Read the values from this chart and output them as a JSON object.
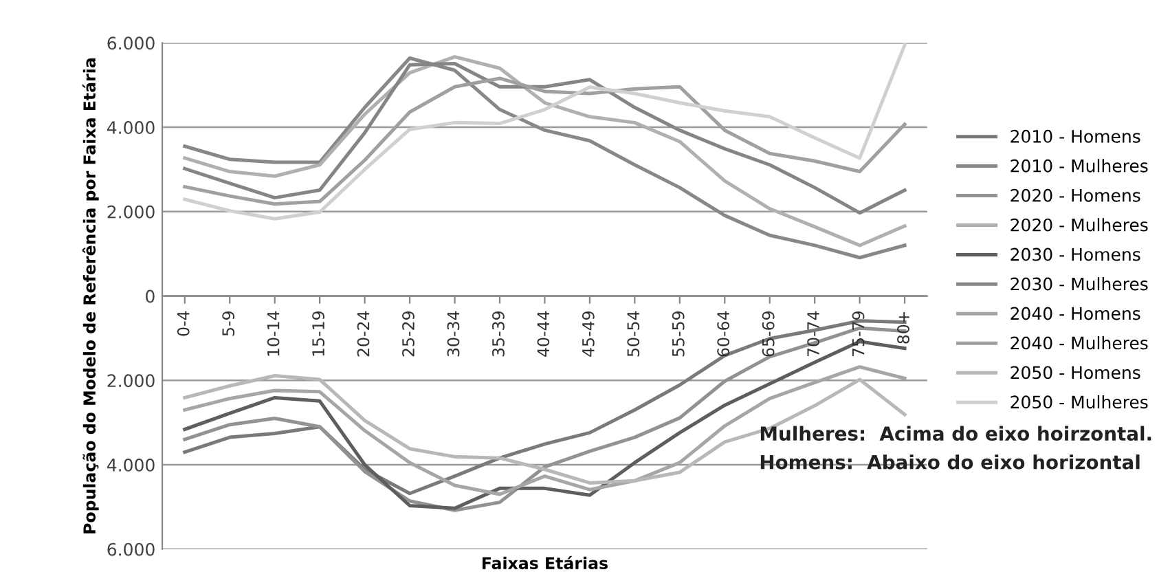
{
  "chart_data": {
    "type": "line",
    "xlabel": "Faixas Etárias",
    "ylabel": "População do Modelo de Referência por Faixa Etária",
    "categories": [
      "0-4",
      "5-9",
      "10-14",
      "15-19",
      "20-24",
      "25-29",
      "30-34",
      "35-39",
      "40-44",
      "45-49",
      "50-54",
      "55-59",
      "60-64",
      "65-69",
      "70-74",
      "75-79",
      "80+"
    ],
    "series": [
      {
        "name": "2010 - Homens",
        "color": "#7a7a7a",
        "values": [
          -3700,
          -3350,
          -3260,
          -3100,
          -4110,
          -4680,
          -4270,
          -3840,
          -3510,
          -3240,
          -2700,
          -2110,
          -1410,
          -1010,
          -810,
          -590,
          -620
        ]
      },
      {
        "name": "2010 - Mulheres",
        "color": "#888888",
        "values": [
          3550,
          3240,
          3170,
          3170,
          4470,
          5640,
          5350,
          4420,
          3930,
          3680,
          3110,
          2570,
          1910,
          1440,
          1200,
          910,
          1200
        ]
      },
      {
        "name": "2020 - Homens",
        "color": "#929292",
        "values": [
          -3400,
          -3050,
          -2900,
          -3100,
          -4160,
          -4860,
          -5080,
          -4890,
          -4050,
          -3680,
          -3350,
          -2890,
          -2020,
          -1440,
          -1110,
          -760,
          -830
        ]
      },
      {
        "name": "2020 - Mulheres",
        "color": "#b0b0b0",
        "values": [
          3270,
          2950,
          2840,
          3110,
          4310,
          5290,
          5670,
          5400,
          4580,
          4250,
          4110,
          3660,
          2730,
          2070,
          1640,
          1200,
          1660
        ]
      },
      {
        "name": "2030 - Homens",
        "color": "#5e5e5e",
        "values": [
          -3160,
          -2780,
          -2410,
          -2490,
          -4000,
          -4970,
          -5030,
          -4560,
          -4560,
          -4720,
          -3950,
          -3240,
          -2590,
          -2080,
          -1570,
          -1080,
          -1240
        ]
      },
      {
        "name": "2030 - Mulheres",
        "color": "#858585",
        "values": [
          3020,
          2670,
          2330,
          2510,
          3870,
          5480,
          5510,
          4960,
          4960,
          5130,
          4470,
          3930,
          3490,
          3110,
          2570,
          1970,
          2510
        ]
      },
      {
        "name": "2040 - Homens",
        "color": "#a6a6a6",
        "values": [
          -2700,
          -2430,
          -2240,
          -2270,
          -3190,
          -3950,
          -4490,
          -4700,
          -4270,
          -4590,
          -4380,
          -3950,
          -3080,
          -2430,
          -2050,
          -1680,
          -1950
        ]
      },
      {
        "name": "2040 - Mulheres",
        "color": "#a0a0a0",
        "values": [
          2590,
          2370,
          2180,
          2240,
          3220,
          4360,
          4960,
          5160,
          4850,
          4800,
          4910,
          4960,
          3930,
          3380,
          3200,
          2950,
          4070
        ]
      },
      {
        "name": "2050 - Homens",
        "color": "#b8b8b8",
        "values": [
          -2410,
          -2130,
          -1890,
          -1980,
          -2950,
          -3620,
          -3810,
          -3840,
          -4110,
          -4430,
          -4380,
          -4180,
          -3460,
          -3140,
          -2600,
          -1980,
          -2810
        ]
      },
      {
        "name": "2050 - Mulheres",
        "color": "#d0d0d0",
        "values": [
          2290,
          2020,
          1830,
          1990,
          3000,
          3950,
          4110,
          4090,
          4420,
          4950,
          4800,
          4580,
          4390,
          4250,
          3750,
          3270,
          5950
        ]
      }
    ],
    "ylim": [
      -6000,
      6000
    ],
    "yticks": [
      {
        "value": -6000,
        "label": "6.000"
      },
      {
        "value": -4000,
        "label": "4.000"
      },
      {
        "value": -2000,
        "label": "2.000"
      },
      0,
      {
        "value": 2000,
        "label": "2.000"
      },
      {
        "value": 4000,
        "label": "4.000"
      },
      {
        "value": 6000,
        "label": "6.000"
      }
    ],
    "grid": "y",
    "legend": "right",
    "marker": "none",
    "line_style": "solid",
    "annotations": [
      "Mulheres:  Acima do eixo hoirzontal.",
      "Homens:  Abaixo do eixo horizontal"
    ]
  }
}
